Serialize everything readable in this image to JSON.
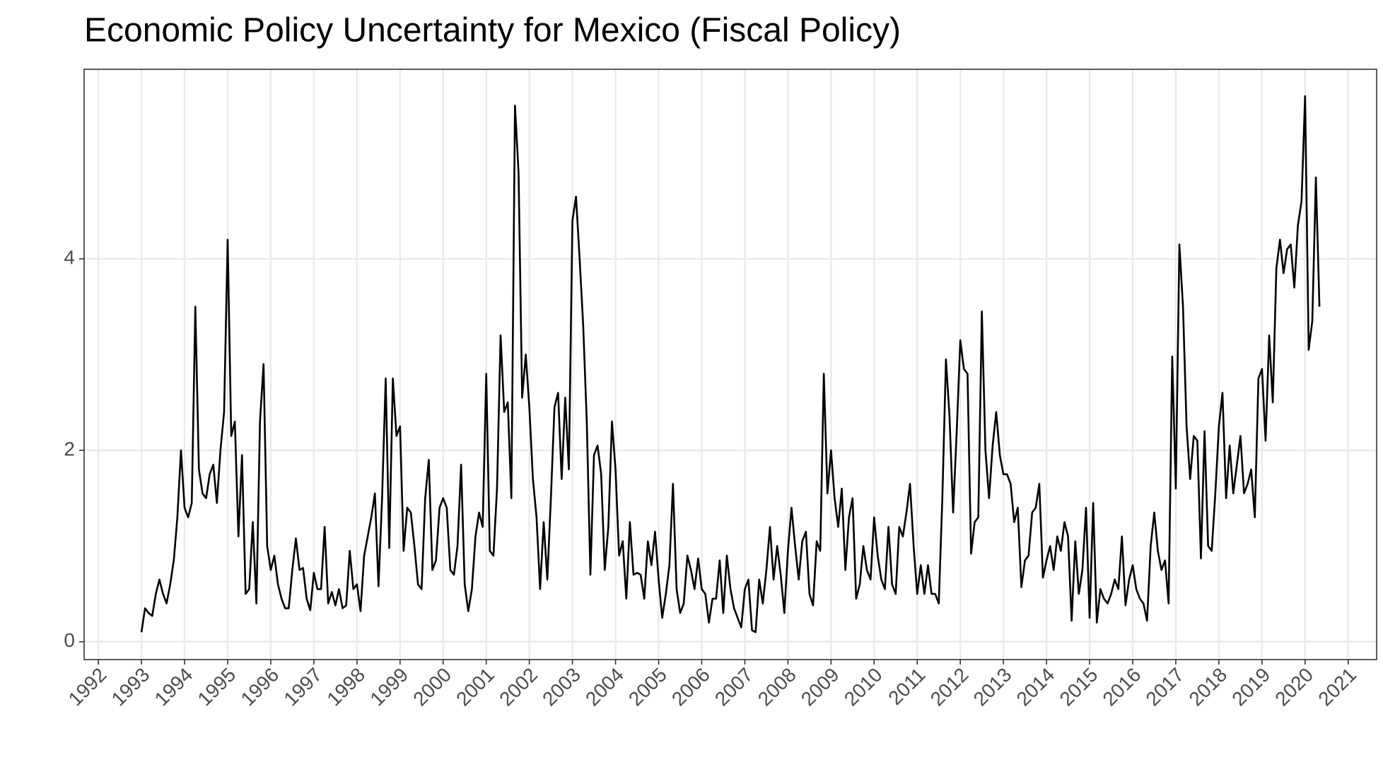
{
  "chart_data": {
    "type": "line",
    "title": "Economic Policy Uncertainty for Mexico (Fiscal Policy)",
    "x": [
      1993,
      1993.083,
      1993.167,
      1993.25,
      1993.333,
      1993.417,
      1993.5,
      1993.583,
      1993.667,
      1993.75,
      1993.833,
      1993.917,
      1994,
      1994.083,
      1994.167,
      1994.25,
      1994.333,
      1994.417,
      1994.5,
      1994.583,
      1994.667,
      1994.75,
      1994.833,
      1994.917,
      1995,
      1995.083,
      1995.167,
      1995.25,
      1995.333,
      1995.417,
      1995.5,
      1995.583,
      1995.667,
      1995.75,
      1995.833,
      1995.917,
      1996,
      1996.083,
      1996.167,
      1996.25,
      1996.333,
      1996.417,
      1996.5,
      1996.583,
      1996.667,
      1996.75,
      1996.833,
      1996.917,
      1997,
      1997.083,
      1997.167,
      1997.25,
      1997.333,
      1997.417,
      1997.5,
      1997.583,
      1997.667,
      1997.75,
      1997.833,
      1997.917,
      1998,
      1998.083,
      1998.167,
      1998.25,
      1998.333,
      1998.417,
      1998.5,
      1998.583,
      1998.667,
      1998.75,
      1998.833,
      1998.917,
      1999,
      1999.083,
      1999.167,
      1999.25,
      1999.333,
      1999.417,
      1999.5,
      1999.583,
      1999.667,
      1999.75,
      1999.833,
      1999.917,
      2000,
      2000.083,
      2000.167,
      2000.25,
      2000.333,
      2000.417,
      2000.5,
      2000.583,
      2000.667,
      2000.75,
      2000.833,
      2000.917,
      2001,
      2001.083,
      2001.167,
      2001.25,
      2001.333,
      2001.417,
      2001.5,
      2001.583,
      2001.667,
      2001.75,
      2001.833,
      2001.917,
      2002,
      2002.083,
      2002.167,
      2002.25,
      2002.333,
      2002.417,
      2002.5,
      2002.583,
      2002.667,
      2002.75,
      2002.833,
      2002.917,
      2003,
      2003.083,
      2003.167,
      2003.25,
      2003.333,
      2003.417,
      2003.5,
      2003.583,
      2003.667,
      2003.75,
      2003.833,
      2003.917,
      2004,
      2004.083,
      2004.167,
      2004.25,
      2004.333,
      2004.417,
      2004.5,
      2004.583,
      2004.667,
      2004.75,
      2004.833,
      2004.917,
      2005,
      2005.083,
      2005.167,
      2005.25,
      2005.333,
      2005.417,
      2005.5,
      2005.583,
      2005.667,
      2005.75,
      2005.833,
      2005.917,
      2006,
      2006.083,
      2006.167,
      2006.25,
      2006.333,
      2006.417,
      2006.5,
      2006.583,
      2006.667,
      2006.75,
      2006.833,
      2006.917,
      2007,
      2007.083,
      2007.167,
      2007.25,
      2007.333,
      2007.417,
      2007.5,
      2007.583,
      2007.667,
      2007.75,
      2007.833,
      2007.917,
      2008,
      2008.083,
      2008.167,
      2008.25,
      2008.333,
      2008.417,
      2008.5,
      2008.583,
      2008.667,
      2008.75,
      2008.833,
      2008.917,
      2009,
      2009.083,
      2009.167,
      2009.25,
      2009.333,
      2009.417,
      2009.5,
      2009.583,
      2009.667,
      2009.75,
      2009.833,
      2009.917,
      2010,
      2010.083,
      2010.167,
      2010.25,
      2010.333,
      2010.417,
      2010.5,
      2010.583,
      2010.667,
      2010.75,
      2010.833,
      2010.917,
      2011,
      2011.083,
      2011.167,
      2011.25,
      2011.333,
      2011.417,
      2011.5,
      2011.583,
      2011.667,
      2011.75,
      2011.833,
      2011.917,
      2012,
      2012.083,
      2012.167,
      2012.25,
      2012.333,
      2012.417,
      2012.5,
      2012.583,
      2012.667,
      2012.75,
      2012.833,
      2012.917,
      2013,
      2013.083,
      2013.167,
      2013.25,
      2013.333,
      2013.417,
      2013.5,
      2013.583,
      2013.667,
      2013.75,
      2013.833,
      2013.917,
      2014,
      2014.083,
      2014.167,
      2014.25,
      2014.333,
      2014.417,
      2014.5,
      2014.583,
      2014.667,
      2014.75,
      2014.833,
      2014.917,
      2015,
      2015.083,
      2015.167,
      2015.25,
      2015.333,
      2015.417,
      2015.5,
      2015.583,
      2015.667,
      2015.75,
      2015.833,
      2015.917,
      2016,
      2016.083,
      2016.167,
      2016.25,
      2016.333,
      2016.417,
      2016.5,
      2016.583,
      2016.667,
      2016.75,
      2016.833,
      2016.917,
      2017,
      2017.083,
      2017.167,
      2017.25,
      2017.333,
      2017.417,
      2017.5,
      2017.583,
      2017.667,
      2017.75,
      2017.833,
      2017.917,
      2018,
      2018.083,
      2018.167,
      2018.25,
      2018.333,
      2018.417,
      2018.5,
      2018.583,
      2018.667,
      2018.75,
      2018.833,
      2018.917,
      2019,
      2019.083,
      2019.167,
      2019.25,
      2019.333,
      2019.417,
      2019.5,
      2019.583,
      2019.667,
      2019.75,
      2019.833,
      2019.917,
      2020,
      2020.083,
      2020.167,
      2020.25,
      2020.333
    ],
    "values": [
      0.1,
      0.35,
      0.3,
      0.27,
      0.5,
      0.65,
      0.5,
      0.4,
      0.6,
      0.85,
      1.3,
      2.0,
      1.4,
      1.3,
      1.45,
      3.5,
      1.8,
      1.55,
      1.5,
      1.75,
      1.85,
      1.45,
      2.0,
      2.4,
      4.2,
      2.15,
      2.3,
      1.1,
      1.95,
      0.5,
      0.55,
      1.25,
      0.4,
      2.3,
      2.9,
      1.0,
      0.75,
      0.9,
      0.6,
      0.45,
      0.35,
      0.35,
      0.75,
      1.08,
      0.75,
      0.77,
      0.45,
      0.33,
      0.72,
      0.55,
      0.55,
      1.2,
      0.4,
      0.52,
      0.38,
      0.55,
      0.35,
      0.38,
      0.95,
      0.55,
      0.6,
      0.32,
      0.9,
      1.1,
      1.3,
      1.55,
      0.58,
      1.5,
      2.75,
      0.98,
      2.75,
      2.15,
      2.25,
      0.95,
      1.4,
      1.35,
      1.0,
      0.6,
      0.55,
      1.5,
      1.9,
      0.75,
      0.85,
      1.4,
      1.5,
      1.4,
      0.75,
      0.7,
      1.0,
      1.85,
      0.6,
      0.32,
      0.55,
      1.1,
      1.35,
      1.2,
      2.8,
      0.95,
      0.9,
      1.6,
      3.2,
      2.4,
      2.5,
      1.5,
      5.6,
      4.9,
      2.55,
      3.0,
      2.45,
      1.7,
      1.3,
      0.55,
      1.25,
      0.65,
      1.5,
      2.45,
      2.6,
      1.7,
      2.55,
      1.8,
      4.4,
      4.65,
      4.0,
      3.3,
      2.3,
      0.7,
      1.95,
      2.05,
      1.75,
      0.75,
      1.2,
      2.3,
      1.8,
      0.9,
      1.05,
      0.45,
      1.25,
      0.7,
      0.72,
      0.7,
      0.45,
      1.05,
      0.8,
      1.15,
      0.65,
      0.25,
      0.5,
      0.8,
      1.65,
      0.55,
      0.3,
      0.4,
      0.9,
      0.75,
      0.55,
      0.87,
      0.55,
      0.5,
      0.2,
      0.45,
      0.45,
      0.85,
      0.3,
      0.9,
      0.55,
      0.35,
      0.25,
      0.15,
      0.55,
      0.65,
      0.12,
      0.1,
      0.65,
      0.4,
      0.75,
      1.2,
      0.65,
      1.0,
      0.7,
      0.3,
      0.95,
      1.4,
      1.0,
      0.65,
      1.05,
      1.15,
      0.5,
      0.38,
      1.05,
      0.95,
      2.8,
      1.55,
      2.0,
      1.5,
      1.2,
      1.6,
      0.75,
      1.3,
      1.5,
      0.45,
      0.6,
      1.0,
      0.75,
      0.65,
      1.3,
      0.9,
      0.65,
      0.55,
      1.2,
      0.6,
      0.5,
      1.2,
      1.1,
      1.35,
      1.65,
      1.0,
      0.5,
      0.8,
      0.5,
      0.8,
      0.5,
      0.5,
      0.4,
      1.5,
      2.95,
      2.35,
      1.35,
      2.2,
      3.15,
      2.85,
      2.8,
      0.92,
      1.25,
      1.3,
      3.45,
      2.0,
      1.5,
      2.05,
      2.4,
      1.95,
      1.75,
      1.75,
      1.65,
      1.25,
      1.4,
      0.57,
      0.85,
      0.9,
      1.35,
      1.4,
      1.65,
      0.67,
      0.85,
      1.0,
      0.75,
      1.1,
      0.95,
      1.25,
      1.1,
      0.22,
      1.05,
      0.5,
      0.75,
      1.4,
      0.25,
      1.45,
      0.2,
      0.55,
      0.45,
      0.4,
      0.5,
      0.65,
      0.55,
      1.1,
      0.38,
      0.65,
      0.8,
      0.55,
      0.45,
      0.4,
      0.22,
      1.0,
      1.35,
      0.95,
      0.75,
      0.85,
      0.4,
      2.98,
      1.6,
      4.15,
      3.5,
      2.25,
      1.7,
      2.15,
      2.1,
      0.87,
      2.2,
      1.0,
      0.95,
      1.55,
      2.25,
      2.6,
      1.5,
      2.05,
      1.55,
      1.85,
      2.15,
      1.55,
      1.65,
      1.8,
      1.3,
      2.75,
      2.85,
      2.1,
      3.2,
      2.5,
      3.9,
      4.2,
      3.85,
      4.1,
      4.15,
      3.7,
      4.35,
      4.6,
      5.7,
      3.05,
      3.35,
      4.85,
      3.5
    ],
    "color": "#000000",
    "xlim": [
      1991.67,
      2021.66
    ],
    "xticks": [
      1992,
      1993,
      1994,
      1995,
      1996,
      1997,
      1998,
      1999,
      2000,
      2001,
      2002,
      2003,
      2004,
      2005,
      2006,
      2007,
      2008,
      2009,
      2010,
      2011,
      2012,
      2013,
      2014,
      2015,
      2016,
      2017,
      2018,
      2019,
      2020,
      2021
    ],
    "ylim": [
      -0.186,
      5.98
    ],
    "yticks": [
      0,
      2,
      4
    ],
    "grid": true
  }
}
